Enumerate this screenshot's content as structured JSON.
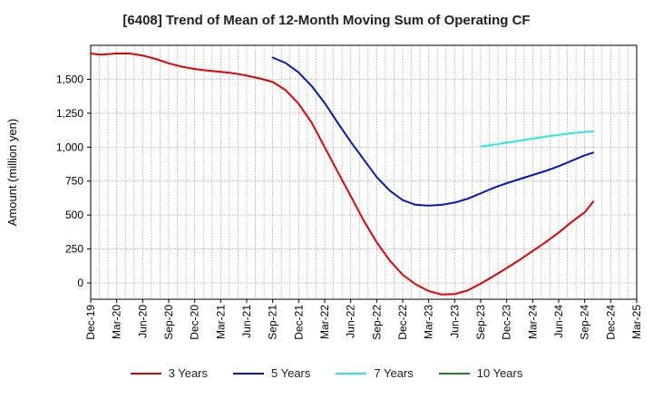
{
  "chart_data": {
    "type": "line",
    "title": "[6408]  Trend of Mean of 12-Month Moving Sum of Operating CF",
    "xlabel": "",
    "ylabel": "Amount (million yen)",
    "ylim": [
      -120,
      1750
    ],
    "yticks": [
      0,
      250,
      500,
      750,
      1000,
      1250,
      1500
    ],
    "ytick_labels": [
      "0",
      "250",
      "500",
      "750",
      "1,000",
      "1,250",
      "1,500"
    ],
    "x_tick_labels": [
      "Dec-19",
      "Mar-20",
      "Jun-20",
      "Sep-20",
      "Dec-20",
      "Mar-21",
      "Jun-21",
      "Sep-21",
      "Dec-21",
      "Mar-22",
      "Jun-22",
      "Sep-22",
      "Dec-22",
      "Mar-23",
      "Jun-23",
      "Sep-23",
      "Dec-23",
      "Mar-24",
      "Jun-24",
      "Sep-24",
      "Dec-24",
      "Mar-25"
    ],
    "legend_position": "bottom",
    "grid": true,
    "series": [
      {
        "name": "3 Years",
        "color": "#e60000",
        "points": [
          [
            0,
            1690
          ],
          [
            0.33,
            1682
          ],
          [
            0.67,
            1685
          ],
          [
            1,
            1690
          ],
          [
            1.5,
            1690
          ],
          [
            2,
            1675
          ],
          [
            2.5,
            1650
          ],
          [
            3,
            1618
          ],
          [
            3.5,
            1593
          ],
          [
            4,
            1576
          ],
          [
            4.5,
            1564
          ],
          [
            5,
            1554
          ],
          [
            5.5,
            1544
          ],
          [
            6,
            1527
          ],
          [
            6.5,
            1506
          ],
          [
            7,
            1480
          ],
          [
            7.5,
            1420
          ],
          [
            8,
            1320
          ],
          [
            8.5,
            1180
          ],
          [
            9,
            1000
          ],
          [
            9.5,
            820
          ],
          [
            10,
            640
          ],
          [
            10.5,
            460
          ],
          [
            11,
            300
          ],
          [
            11.5,
            165
          ],
          [
            12,
            60
          ],
          [
            12.5,
            -10
          ],
          [
            13,
            -60
          ],
          [
            13.5,
            -85
          ],
          [
            14,
            -82
          ],
          [
            14.5,
            -55
          ],
          [
            15,
            -5
          ],
          [
            15.5,
            50
          ],
          [
            16,
            110
          ],
          [
            16.5,
            170
          ],
          [
            17,
            235
          ],
          [
            17.5,
            300
          ],
          [
            18,
            370
          ],
          [
            18.5,
            450
          ],
          [
            19,
            520
          ],
          [
            19.33,
            600
          ]
        ]
      },
      {
        "name": "5 Years",
        "color": "#0018cc",
        "points": [
          [
            7,
            1660
          ],
          [
            7.5,
            1620
          ],
          [
            8,
            1550
          ],
          [
            8.5,
            1450
          ],
          [
            9,
            1325
          ],
          [
            9.5,
            1180
          ],
          [
            10,
            1040
          ],
          [
            10.5,
            910
          ],
          [
            11,
            780
          ],
          [
            11.5,
            680
          ],
          [
            12,
            610
          ],
          [
            12.5,
            575
          ],
          [
            13,
            570
          ],
          [
            13.5,
            575
          ],
          [
            14,
            592
          ],
          [
            14.5,
            620
          ],
          [
            15,
            660
          ],
          [
            15.5,
            700
          ],
          [
            16,
            735
          ],
          [
            16.5,
            765
          ],
          [
            17,
            795
          ],
          [
            17.5,
            825
          ],
          [
            18,
            860
          ],
          [
            18.5,
            900
          ],
          [
            19,
            940
          ],
          [
            19.33,
            960
          ]
        ]
      },
      {
        "name": "7 Years",
        "color": "#22e8ee",
        "points": [
          [
            15,
            1005
          ],
          [
            15.5,
            1018
          ],
          [
            16,
            1033
          ],
          [
            16.5,
            1048
          ],
          [
            17,
            1063
          ],
          [
            17.5,
            1077
          ],
          [
            18,
            1090
          ],
          [
            18.5,
            1102
          ],
          [
            19,
            1112
          ],
          [
            19.33,
            1117
          ]
        ]
      },
      {
        "name": "10 Years",
        "color": "#1a8a1a",
        "points": []
      }
    ]
  }
}
